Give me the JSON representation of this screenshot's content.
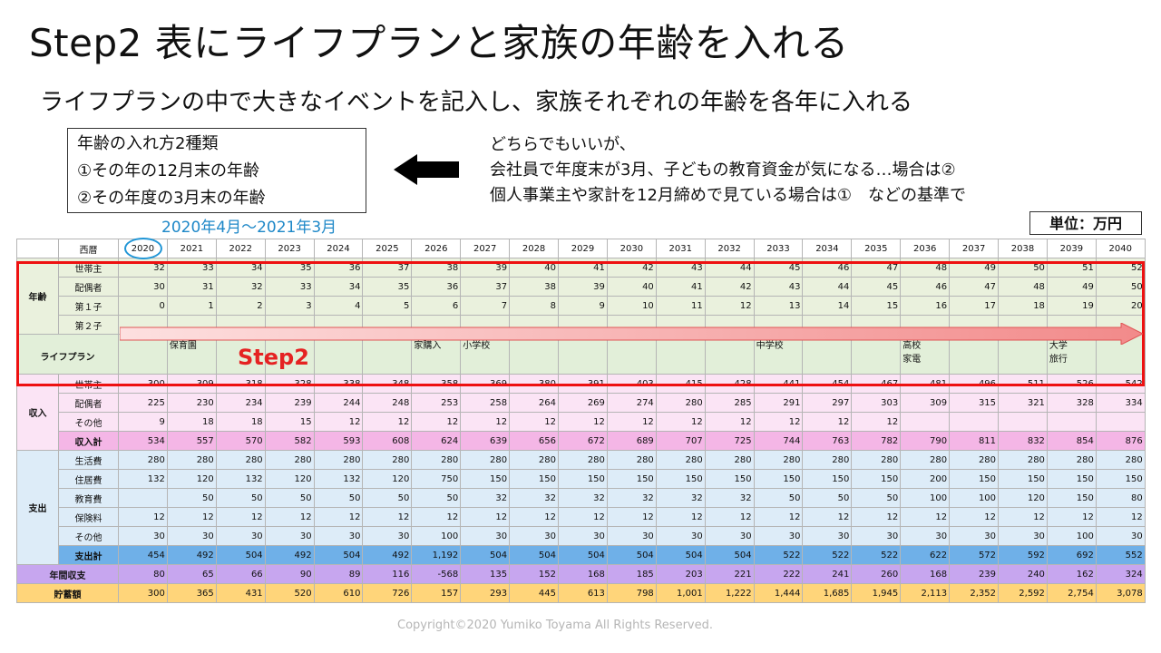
{
  "title": "Step2 表にライフプランと家族の年齢を入れる",
  "subtitle": "ライフプランの中で大きなイベントを記入し、家族それぞれの年齢を各年に入れる",
  "note_box": [
    "年齢の入れ方2種類",
    "①その年の12月末の年齢",
    "②その年度の3月末の年齢"
  ],
  "explanation": [
    "どちらでもいいが、",
    "会社員で年度末が3月、子どもの教育資金が気になる…場合は②",
    "個人事業主や家計を12月締めで見ている場合は①　などの基準で"
  ],
  "period_label": "2020年4月～2021年3月",
  "unit_label": "単位：万円",
  "step_label": "Step2",
  "copyright": "Copyright©2020 Yumiko Toyama All Rights Reserved.",
  "header_label": "西暦",
  "years": [
    "2020",
    "2021",
    "2022",
    "2023",
    "2024",
    "2025",
    "2026",
    "2027",
    "2028",
    "2029",
    "2030",
    "2031",
    "2032",
    "2033",
    "2034",
    "2035",
    "2036",
    "2037",
    "2038",
    "2039",
    "2040"
  ],
  "age_section": {
    "label": "年齢",
    "rows": [
      {
        "label": "世帯主",
        "values": [
          "32",
          "33",
          "34",
          "35",
          "36",
          "37",
          "38",
          "39",
          "40",
          "41",
          "42",
          "43",
          "44",
          "45",
          "46",
          "47",
          "48",
          "49",
          "50",
          "51",
          "52"
        ]
      },
      {
        "label": "配偶者",
        "values": [
          "30",
          "31",
          "32",
          "33",
          "34",
          "35",
          "36",
          "37",
          "38",
          "39",
          "40",
          "41",
          "42",
          "43",
          "44",
          "45",
          "46",
          "47",
          "48",
          "49",
          "50"
        ]
      },
      {
        "label": "第１子",
        "values": [
          "0",
          "1",
          "2",
          "3",
          "4",
          "5",
          "6",
          "7",
          "8",
          "9",
          "10",
          "11",
          "12",
          "13",
          "14",
          "15",
          "16",
          "17",
          "18",
          "19",
          "20"
        ]
      },
      {
        "label": "第２子",
        "values": [
          "",
          "",
          "",
          "",
          "",
          "",
          "",
          "",
          "",
          "",
          "",
          "",
          "",
          "",
          "",
          "",
          "",
          "",
          "",
          "",
          ""
        ]
      }
    ]
  },
  "life_plan": {
    "label": "ライフプラン",
    "events": [
      "",
      "保育園",
      "",
      "",
      "",
      "",
      "家購入",
      "小学校",
      "",
      "",
      "",
      "",
      "",
      "中学校",
      "",
      "",
      "高校\n家電",
      "",
      "",
      "大学\n旅行",
      ""
    ]
  },
  "income_section": {
    "label": "収入",
    "rows": [
      {
        "label": "世帯主",
        "values": [
          "300",
          "309",
          "318",
          "328",
          "338",
          "348",
          "358",
          "369",
          "380",
          "391",
          "403",
          "415",
          "428",
          "441",
          "454",
          "467",
          "481",
          "496",
          "511",
          "526",
          "542"
        ]
      },
      {
        "label": "配偶者",
        "values": [
          "225",
          "230",
          "234",
          "239",
          "244",
          "248",
          "253",
          "258",
          "264",
          "269",
          "274",
          "280",
          "285",
          "291",
          "297",
          "303",
          "309",
          "315",
          "321",
          "328",
          "334"
        ]
      },
      {
        "label": "その他",
        "values": [
          "9",
          "18",
          "18",
          "15",
          "12",
          "12",
          "12",
          "12",
          "12",
          "12",
          "12",
          "12",
          "12",
          "12",
          "12",
          "12",
          "",
          "",
          "",
          "",
          ""
        ]
      }
    ],
    "total": {
      "label": "収入計",
      "values": [
        "534",
        "557",
        "570",
        "582",
        "593",
        "608",
        "624",
        "639",
        "656",
        "672",
        "689",
        "707",
        "725",
        "744",
        "763",
        "782",
        "790",
        "811",
        "832",
        "854",
        "876"
      ]
    }
  },
  "expense_section": {
    "label": "支出",
    "rows": [
      {
        "label": "生活費",
        "values": [
          "280",
          "280",
          "280",
          "280",
          "280",
          "280",
          "280",
          "280",
          "280",
          "280",
          "280",
          "280",
          "280",
          "280",
          "280",
          "280",
          "280",
          "280",
          "280",
          "280",
          "280"
        ]
      },
      {
        "label": "住居費",
        "values": [
          "132",
          "120",
          "132",
          "120",
          "132",
          "120",
          "750",
          "150",
          "150",
          "150",
          "150",
          "150",
          "150",
          "150",
          "150",
          "150",
          "200",
          "150",
          "150",
          "150",
          "150"
        ]
      },
      {
        "label": "教育費",
        "values": [
          "",
          "50",
          "50",
          "50",
          "50",
          "50",
          "50",
          "32",
          "32",
          "32",
          "32",
          "32",
          "32",
          "50",
          "50",
          "50",
          "100",
          "100",
          "120",
          "150",
          "80"
        ]
      },
      {
        "label": "保険料",
        "values": [
          "12",
          "12",
          "12",
          "12",
          "12",
          "12",
          "12",
          "12",
          "12",
          "12",
          "12",
          "12",
          "12",
          "12",
          "12",
          "12",
          "12",
          "12",
          "12",
          "12",
          "12"
        ]
      },
      {
        "label": "その他",
        "values": [
          "30",
          "30",
          "30",
          "30",
          "30",
          "30",
          "100",
          "30",
          "30",
          "30",
          "30",
          "30",
          "30",
          "30",
          "30",
          "30",
          "30",
          "30",
          "30",
          "100",
          "30"
        ]
      }
    ],
    "total": {
      "label": "支出計",
      "values": [
        "454",
        "492",
        "504",
        "492",
        "504",
        "492",
        "1,192",
        "504",
        "504",
        "504",
        "504",
        "504",
        "504",
        "522",
        "522",
        "522",
        "622",
        "572",
        "592",
        "692",
        "552"
      ]
    }
  },
  "annual_balance": {
    "label": "年間収支",
    "values": [
      "80",
      "65",
      "66",
      "90",
      "89",
      "116",
      "-568",
      "135",
      "152",
      "168",
      "185",
      "203",
      "221",
      "222",
      "241",
      "260",
      "168",
      "239",
      "240",
      "162",
      "324"
    ]
  },
  "savings": {
    "label": "貯蓄額",
    "values": [
      "300",
      "365",
      "431",
      "520",
      "610",
      "726",
      "157",
      "293",
      "445",
      "613",
      "798",
      "1,001",
      "1,222",
      "1,444",
      "1,685",
      "1,945",
      "2,113",
      "2,352",
      "2,592",
      "2,754",
      "3,078"
    ]
  }
}
